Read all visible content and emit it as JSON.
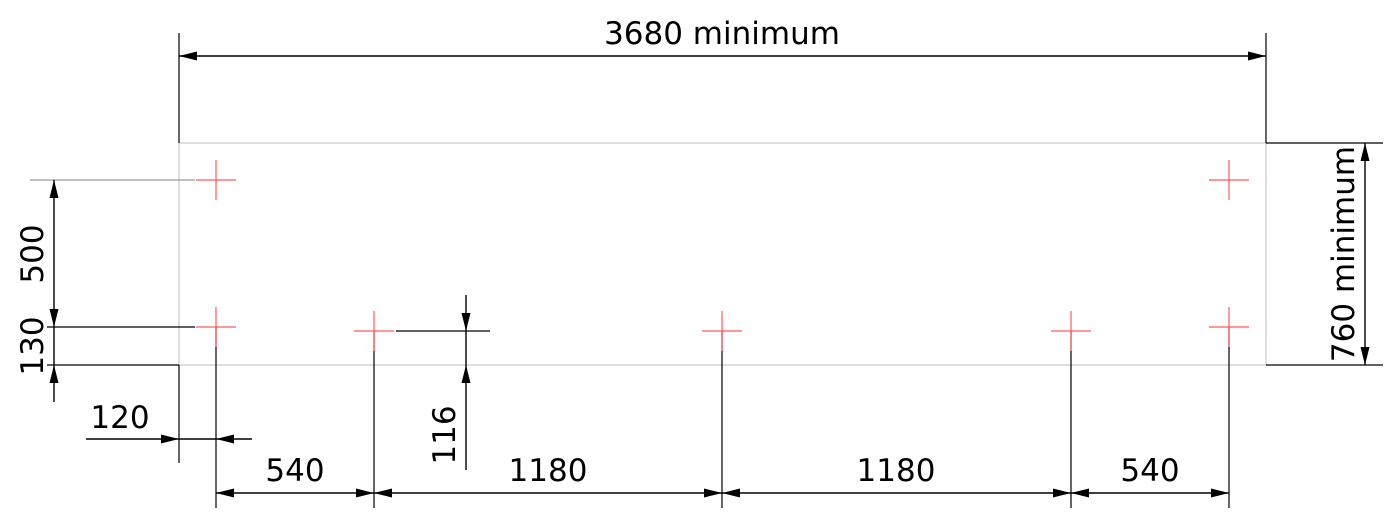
{
  "dimensions": {
    "overall_width": "3680 minimum",
    "overall_height": "760 minimum",
    "left_vertical_upper": "500",
    "left_vertical_lower": "130",
    "left_offset": "120",
    "depth_offset": "116",
    "span_1": "540",
    "span_2": "1180",
    "span_3": "1180",
    "span_4": "540"
  },
  "colors": {
    "marker": "#ff5a5a",
    "outline": "#c8c8c8",
    "dimension": "#000000"
  }
}
